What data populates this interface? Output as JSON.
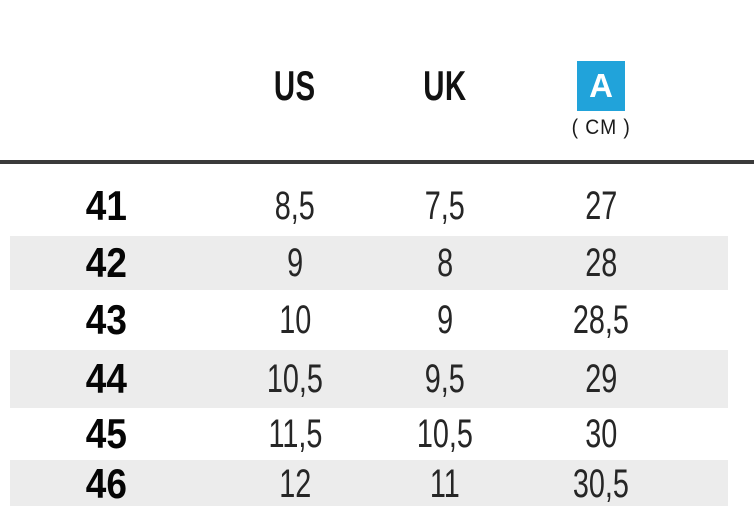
{
  "header": {
    "us_label": "US",
    "uk_label": "UK",
    "badge_label": "A",
    "cm_unit": "( CM )"
  },
  "table": {
    "rows": [
      {
        "eu": "41",
        "us": "8,5",
        "uk": "7,5",
        "cm": "27"
      },
      {
        "eu": "42",
        "us": "9",
        "uk": "8",
        "cm": "28"
      },
      {
        "eu": "43",
        "us": "10",
        "uk": "9",
        "cm": "28,5"
      },
      {
        "eu": "44",
        "us": "10,5",
        "uk": "9,5",
        "cm": "29"
      },
      {
        "eu": "45",
        "us": "11,5",
        "uk": "10,5",
        "cm": "30"
      },
      {
        "eu": "46",
        "us": "12",
        "uk": "11",
        "cm": "30,5"
      }
    ]
  },
  "colors": {
    "badge_blue": "#21a3da",
    "row_alt_gray": "#ececec",
    "separator_dark": "#3a3a3a",
    "text_black": "#1a1a1a"
  },
  "chart_data": {
    "type": "table",
    "title": "",
    "columns": [
      "",
      "US",
      "UK",
      "A ( CM )"
    ],
    "rows": [
      [
        "41",
        "8,5",
        "7,5",
        "27"
      ],
      [
        "42",
        "9",
        "8",
        "28"
      ],
      [
        "43",
        "10",
        "9",
        "28,5"
      ],
      [
        "44",
        "10,5",
        "9,5",
        "29"
      ],
      [
        "45",
        "11,5",
        "10,5",
        "30"
      ],
      [
        "46",
        "12",
        "11",
        "30,5"
      ]
    ],
    "layout": {
      "alternating_row_shading": true,
      "shaded_rows": [
        "42",
        "44",
        "46"
      ],
      "header_separator_line": true
    }
  }
}
